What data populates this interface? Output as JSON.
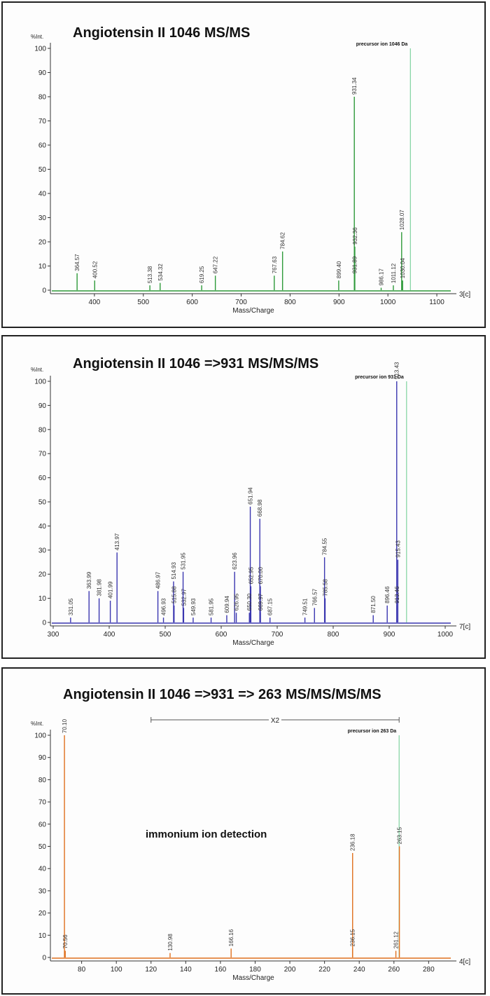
{
  "chart_data": [
    {
      "type": "line",
      "title": "Angiotensin II 1046 MS/MS",
      "xlabel": "Mass/Charge",
      "ylabel": "%Int.",
      "xlim": [
        310,
        1140
      ],
      "ylim": [
        0,
        100
      ],
      "xticks": [
        400,
        500,
        600,
        700,
        800,
        900,
        1000,
        1100
      ],
      "yticks": [
        0,
        10,
        20,
        30,
        40,
        50,
        60,
        70,
        80,
        90,
        100
      ],
      "color": "#2e9a3a",
      "corner_label": "3[c]",
      "precursor": {
        "mz": 1046,
        "label": "precursor ion 1046 Da"
      },
      "peaks": [
        {
          "mz": 364.57,
          "intensity": 7,
          "label": "364.57"
        },
        {
          "mz": 400.52,
          "intensity": 4,
          "label": "400.52"
        },
        {
          "mz": 513.38,
          "intensity": 2,
          "label": "513.38"
        },
        {
          "mz": 534.32,
          "intensity": 3,
          "label": "534.32"
        },
        {
          "mz": 619.25,
          "intensity": 2,
          "label": "619.25"
        },
        {
          "mz": 647.22,
          "intensity": 6,
          "label": "647.22"
        },
        {
          "mz": 767.63,
          "intensity": 6,
          "label": "767.63"
        },
        {
          "mz": 784.62,
          "intensity": 16,
          "label": "784.62"
        },
        {
          "mz": 899.4,
          "intensity": 4,
          "label": "899.40"
        },
        {
          "mz": 931.34,
          "intensity": 80,
          "label": "931.34"
        },
        {
          "mz": 932.36,
          "intensity": 18,
          "label": "932.36"
        },
        {
          "mz": 931.89,
          "intensity": 6,
          "label": "931.89"
        },
        {
          "mz": 986.17,
          "intensity": 1,
          "label": "986.17"
        },
        {
          "mz": 1011.12,
          "intensity": 2,
          "label": "1011.12"
        },
        {
          "mz": 1028.07,
          "intensity": 24,
          "label": "1028.07"
        },
        {
          "mz": 1030.04,
          "intensity": 4,
          "label": "1030.04"
        }
      ]
    },
    {
      "type": "line",
      "title": "Angiotensin II 1046 =>931 MS/MS/MS",
      "xlabel": "Mass/Charge",
      "ylabel": "%Int.",
      "xlim": [
        295,
        1020
      ],
      "ylim": [
        0,
        100
      ],
      "xticks": [
        300,
        400,
        500,
        600,
        700,
        800,
        900,
        1000
      ],
      "yticks": [
        0,
        10,
        20,
        30,
        40,
        50,
        60,
        70,
        80,
        90,
        100
      ],
      "color": "#3a36b0",
      "corner_label": "7[c]",
      "precursor": {
        "mz": 931,
        "label": "precursor ion 931 Da"
      },
      "peaks": [
        {
          "mz": 331.05,
          "intensity": 2,
          "label": "331.05"
        },
        {
          "mz": 363.99,
          "intensity": 13,
          "label": "363.99"
        },
        {
          "mz": 381.98,
          "intensity": 10,
          "label": "381.98"
        },
        {
          "mz": 401.99,
          "intensity": 9,
          "label": "401.99"
        },
        {
          "mz": 413.97,
          "intensity": 29,
          "label": "413.97"
        },
        {
          "mz": 486.97,
          "intensity": 13,
          "label": "486.97"
        },
        {
          "mz": 496.93,
          "intensity": 2,
          "label": "496.93"
        },
        {
          "mz": 514.93,
          "intensity": 17,
          "label": "514.93"
        },
        {
          "mz": 515.88,
          "intensity": 7,
          "label": "515.88"
        },
        {
          "mz": 532.97,
          "intensity": 6,
          "label": "532.97"
        },
        {
          "mz": 531.95,
          "intensity": 21,
          "label": "531.95"
        },
        {
          "mz": 549.93,
          "intensity": 2,
          "label": "549.93"
        },
        {
          "mz": 581.95,
          "intensity": 2,
          "label": "581.95"
        },
        {
          "mz": 609.94,
          "intensity": 3,
          "label": "609.94"
        },
        {
          "mz": 623.96,
          "intensity": 21,
          "label": "623.96"
        },
        {
          "mz": 626.95,
          "intensity": 4,
          "label": "626.95"
        },
        {
          "mz": 651.94,
          "intensity": 48,
          "label": "651.94"
        },
        {
          "mz": 652.95,
          "intensity": 15,
          "label": "652.95"
        },
        {
          "mz": 650.3,
          "intensity": 4,
          "label": "650.30"
        },
        {
          "mz": 668.98,
          "intensity": 43,
          "label": "668.98"
        },
        {
          "mz": 670.0,
          "intensity": 15,
          "label": "670.00"
        },
        {
          "mz": 669.97,
          "intensity": 4,
          "label": "669.97"
        },
        {
          "mz": 687.15,
          "intensity": 2,
          "label": "687.15"
        },
        {
          "mz": 749.51,
          "intensity": 2,
          "label": "749.51"
        },
        {
          "mz": 766.57,
          "intensity": 6,
          "label": "766.57"
        },
        {
          "mz": 784.55,
          "intensity": 27,
          "label": "784.55"
        },
        {
          "mz": 785.58,
          "intensity": 10,
          "label": "785.58"
        },
        {
          "mz": 871.5,
          "intensity": 3,
          "label": "871.50"
        },
        {
          "mz": 896.46,
          "intensity": 7,
          "label": "896.46"
        },
        {
          "mz": 913.43,
          "intensity": 100,
          "label": "913.43"
        },
        {
          "mz": 915.43,
          "intensity": 26,
          "label": "915.43"
        },
        {
          "mz": 913.46,
          "intensity": 7,
          "label": "913.46"
        }
      ]
    },
    {
      "type": "line",
      "title": "Angiotensin II 1046 =>931 => 263 MS/MS/MS/MS",
      "xlabel": "Mass/Charge",
      "ylabel": "%Int.",
      "xlim": [
        62,
        296
      ],
      "ylim": [
        0,
        100
      ],
      "xticks": [
        80,
        100,
        120,
        140,
        160,
        180,
        200,
        220,
        240,
        260,
        280
      ],
      "yticks": [
        0,
        10,
        20,
        30,
        40,
        50,
        60,
        70,
        80,
        90,
        100
      ],
      "color": "#e0701e",
      "corner_label": "4[c]",
      "precursor": {
        "mz": 263,
        "label": "precursor ion 263 Da"
      },
      "zoom_label": "X2",
      "annotation": "immonium ion detection",
      "peaks": [
        {
          "mz": 70.1,
          "intensity": 100,
          "label": "70.10"
        },
        {
          "mz": 70.56,
          "intensity": 3,
          "label": "70.56"
        },
        {
          "mz": 130.98,
          "intensity": 2,
          "label": "130.98"
        },
        {
          "mz": 166.16,
          "intensity": 4,
          "label": "166.16"
        },
        {
          "mz": 236.18,
          "intensity": 47,
          "label": "236.18"
        },
        {
          "mz": 236.15,
          "intensity": 4,
          "label": "236.15"
        },
        {
          "mz": 261.12,
          "intensity": 3,
          "label": "261.12"
        },
        {
          "mz": 263.15,
          "intensity": 50,
          "label": "263.15"
        }
      ]
    }
  ]
}
